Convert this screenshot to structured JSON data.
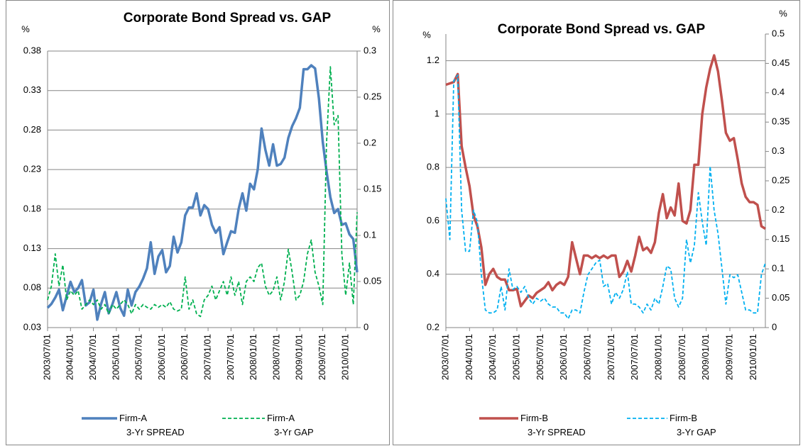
{
  "chart_data": [
    {
      "type": "line",
      "title": "Corporate Bond Spread vs. GAP",
      "ylabel": "%",
      "y2label": "%",
      "categories": [
        "2003/07/01",
        null,
        null,
        null,
        null,
        null,
        "2004/01/01",
        null,
        null,
        null,
        null,
        null,
        "2004/07/01",
        null,
        null,
        null,
        null,
        null,
        "2005/01/01",
        null,
        null,
        null,
        null,
        null,
        "2005/07/01",
        null,
        null,
        null,
        null,
        null,
        "2006/01/01",
        null,
        null,
        null,
        null,
        null,
        "2006/07/01",
        null,
        null,
        null,
        null,
        null,
        "2007/01/01",
        null,
        null,
        null,
        null,
        null,
        "2007/07/01",
        null,
        null,
        null,
        null,
        null,
        "2008/01/01",
        null,
        null,
        null,
        null,
        null,
        "2008/07/01",
        null,
        null,
        null,
        null,
        null,
        "2009/01/01",
        null,
        null,
        null,
        null,
        null,
        "2009/07/01",
        null,
        null,
        null,
        null,
        null,
        "2010/01/01",
        null,
        null,
        null
      ],
      "ylim": [
        0.03,
        0.38
      ],
      "yticks": [
        0.03,
        0.08,
        0.13,
        0.18,
        0.23,
        0.28,
        0.33,
        0.38
      ],
      "y2lim": [
        0,
        0.3
      ],
      "y2ticks": [
        0,
        0.05,
        0.1,
        0.15,
        0.2,
        0.25,
        0.3
      ],
      "grid": true,
      "series": [
        {
          "name": "Firm-A\n3-Yr SPREAD",
          "color": "#4f81bd",
          "style": "solid",
          "values": [
            0.055,
            0.06,
            0.068,
            0.078,
            0.052,
            0.07,
            0.088,
            0.075,
            0.08,
            0.09,
            0.058,
            0.062,
            0.078,
            0.04,
            0.06,
            0.075,
            0.048,
            0.06,
            0.075,
            0.055,
            0.045,
            0.078,
            0.058,
            0.075,
            0.082,
            0.092,
            0.105,
            0.138,
            0.098,
            0.12,
            0.128,
            0.1,
            0.108,
            0.145,
            0.125,
            0.138,
            0.172,
            0.182,
            0.182,
            0.2,
            0.172,
            0.185,
            0.18,
            0.16,
            0.15,
            0.157,
            0.123,
            0.138,
            0.152,
            0.15,
            0.18,
            0.2,
            0.178,
            0.212,
            0.205,
            0.23,
            0.282,
            0.255,
            0.235,
            0.262,
            0.235,
            0.237,
            0.245,
            0.27,
            0.285,
            0.295,
            0.308,
            0.357,
            0.357,
            0.362,
            0.358,
            0.32,
            0.265,
            0.228,
            0.195,
            0.175,
            0.18,
            0.16,
            0.162,
            0.148,
            0.142,
            0.1
          ]
        },
        {
          "name": "Firm-A\n3-Yr GAP",
          "color": "#00b050",
          "style": "dashed",
          "axis": "y2",
          "values": [
            0.03,
            0.045,
            0.08,
            0.045,
            0.068,
            0.03,
            0.04,
            0.035,
            0.04,
            0.02,
            0.025,
            0.03,
            0.025,
            0.03,
            0.02,
            0.025,
            0.015,
            0.025,
            0.02,
            0.025,
            0.03,
            0.025,
            0.015,
            0.025,
            0.02,
            0.025,
            0.022,
            0.02,
            0.025,
            0.022,
            0.025,
            0.022,
            0.028,
            0.02,
            0.018,
            0.02,
            0.055,
            0.02,
            0.03,
            0.015,
            0.012,
            0.03,
            0.035,
            0.045,
            0.03,
            0.04,
            0.05,
            0.035,
            0.055,
            0.035,
            0.05,
            0.025,
            0.05,
            0.055,
            0.05,
            0.065,
            0.07,
            0.045,
            0.035,
            0.04,
            0.055,
            0.03,
            0.05,
            0.085,
            0.06,
            0.03,
            0.035,
            0.05,
            0.08,
            0.095,
            0.06,
            0.045,
            0.025,
            0.2,
            0.283,
            0.22,
            0.23,
            0.08,
            0.035,
            0.07,
            0.025,
            0.125
          ]
        }
      ]
    },
    {
      "type": "line",
      "title": "Corporate Bond Spread vs. GAP",
      "ylabel": "%",
      "y2label": "%",
      "categories": [
        "2003/07/01",
        null,
        null,
        null,
        null,
        null,
        "2004/01/01",
        null,
        null,
        null,
        null,
        null,
        "2004/07/01",
        null,
        null,
        null,
        null,
        null,
        "2005/01/01",
        null,
        null,
        null,
        null,
        null,
        "2005/07/01",
        null,
        null,
        null,
        null,
        null,
        "2006/01/01",
        null,
        null,
        null,
        null,
        null,
        "2006/07/01",
        null,
        null,
        null,
        null,
        null,
        "2007/01/01",
        null,
        null,
        null,
        null,
        null,
        "2007/07/01",
        null,
        null,
        null,
        null,
        null,
        "2008/01/01",
        null,
        null,
        null,
        null,
        null,
        "2008/07/01",
        null,
        null,
        null,
        null,
        null,
        "2009/01/01",
        null,
        null,
        null,
        null,
        null,
        "2009/07/01",
        null,
        null,
        null,
        null,
        null,
        "2010/01/01",
        null,
        null,
        null
      ],
      "ylim": [
        0.2,
        1.3
      ],
      "yticks": [
        0.2,
        0.4,
        0.6,
        0.8,
        1,
        1.2
      ],
      "y2lim": [
        0,
        0.5
      ],
      "y2ticks": [
        0,
        0.05,
        0.1,
        0.15,
        0.2,
        0.25,
        0.3,
        0.35,
        0.4,
        0.45,
        0.5
      ],
      "grid": true,
      "series": [
        {
          "name": "Firm-B\n3-Yr SPREAD",
          "color": "#c0504d",
          "style": "solid",
          "values": [
            1.11,
            1.115,
            1.12,
            1.15,
            0.88,
            0.8,
            0.73,
            0.62,
            0.58,
            0.5,
            0.36,
            0.4,
            0.42,
            0.39,
            0.38,
            0.38,
            0.34,
            0.34,
            0.345,
            0.28,
            0.3,
            0.32,
            0.31,
            0.33,
            0.34,
            0.35,
            0.37,
            0.34,
            0.36,
            0.37,
            0.36,
            0.39,
            0.52,
            0.46,
            0.4,
            0.47,
            0.47,
            0.46,
            0.47,
            0.46,
            0.47,
            0.46,
            0.47,
            0.47,
            0.39,
            0.41,
            0.45,
            0.41,
            0.47,
            0.54,
            0.49,
            0.5,
            0.48,
            0.52,
            0.63,
            0.7,
            0.61,
            0.65,
            0.62,
            0.74,
            0.6,
            0.59,
            0.64,
            0.81,
            0.81,
            1.0,
            1.1,
            1.17,
            1.22,
            1.16,
            1.05,
            0.93,
            0.9,
            0.91,
            0.83,
            0.74,
            0.69,
            0.67,
            0.67,
            0.66,
            0.58,
            0.57
          ]
        },
        {
          "name": "Firm-B\n3-Yr GAP",
          "color": "#00b0f0",
          "style": "dashed",
          "axis": "y2",
          "values": [
            0.22,
            0.15,
            0.42,
            0.43,
            0.2,
            0.13,
            0.13,
            0.2,
            0.18,
            0.09,
            0.03,
            0.025,
            0.025,
            0.03,
            0.07,
            0.03,
            0.1,
            0.065,
            0.07,
            0.06,
            0.07,
            0.05,
            0.04,
            0.05,
            0.045,
            0.05,
            0.04,
            0.035,
            0.035,
            0.025,
            0.025,
            0.015,
            0.03,
            0.03,
            0.025,
            0.06,
            0.09,
            0.1,
            0.11,
            0.115,
            0.07,
            0.075,
            0.04,
            0.06,
            0.05,
            0.065,
            0.095,
            0.04,
            0.04,
            0.035,
            0.025,
            0.04,
            0.03,
            0.05,
            0.04,
            0.07,
            0.105,
            0.1,
            0.05,
            0.035,
            0.05,
            0.15,
            0.11,
            0.14,
            0.23,
            0.18,
            0.14,
            0.275,
            0.2,
            0.16,
            0.1,
            0.04,
            0.09,
            0.085,
            0.09,
            0.06,
            0.03,
            0.03,
            0.025,
            0.025,
            0.09,
            0.11
          ]
        }
      ]
    }
  ]
}
